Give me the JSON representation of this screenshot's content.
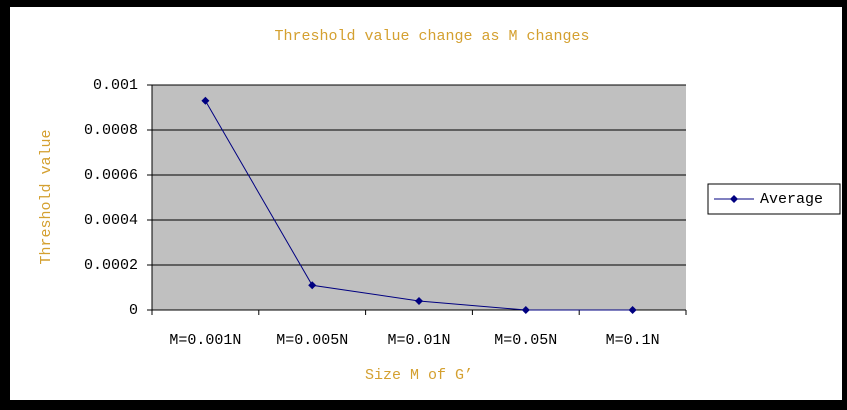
{
  "chart_data": {
    "type": "line",
    "title": "Threshold value change as M changes",
    "x_label": "Size M of G’",
    "y_label": "Threshold value",
    "categories": [
      "M=0.001N",
      "M=0.005N",
      "M=0.01N",
      "M=0.05N",
      "M=0.1N"
    ],
    "series": [
      {
        "name": "Average",
        "color": "#000080",
        "values": [
          0.00093,
          0.00011,
          4e-05,
          0,
          0
        ]
      }
    ],
    "ylim": [
      0,
      0.001
    ],
    "yticks": [
      0,
      0.0002,
      0.0004,
      0.0006,
      0.0008,
      0.001
    ],
    "grid": true,
    "legend": "right"
  }
}
